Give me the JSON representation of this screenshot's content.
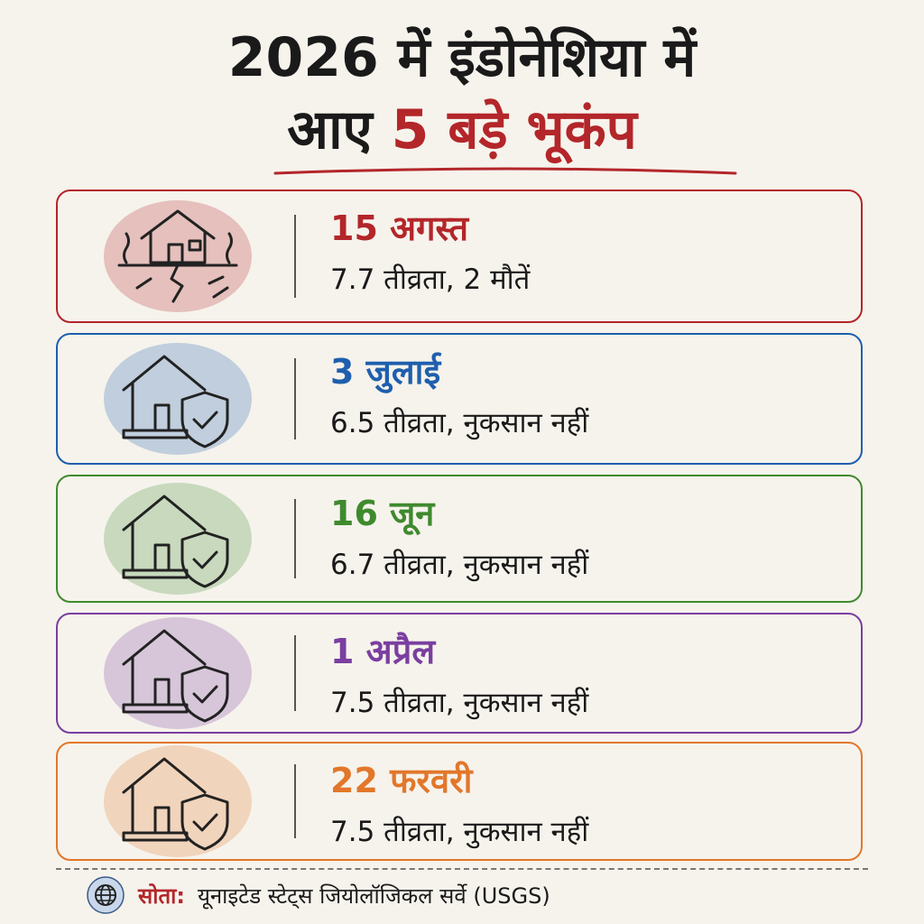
{
  "header": {
    "title_line1": "2026 में इंडोनेशिया में",
    "title_line2_prefix": "आए",
    "title_line2_highlight": "5 बड़े भूकंप"
  },
  "cards": [
    {
      "date": "15 अगस्त",
      "detail": "7.7 तीव्रता, 2 मौतें",
      "color": "#b3262a"
    },
    {
      "date": "3 जुलाई",
      "detail": "6.5 तीव्रता, नुकसान नहीं",
      "color": "#1f5fae"
    },
    {
      "date": "16 जून",
      "detail": "6.7 तीव्रता, नुकसान नहीं",
      "color": "#3f8a2e"
    },
    {
      "date": "1 अप्रैल",
      "detail": "7.5 तीव्रता, नुकसान नहीं",
      "color": "#7a3ea0"
    },
    {
      "date": "22 फरवरी",
      "detail": "7.5 तीव्रता, नुकसान नहीं",
      "color": "#e2772a"
    }
  ],
  "source": {
    "label": "सोता:",
    "text": "यूनाइटेड स्टेट्स जियोलॉजिकल सर्वे (USGS)"
  }
}
